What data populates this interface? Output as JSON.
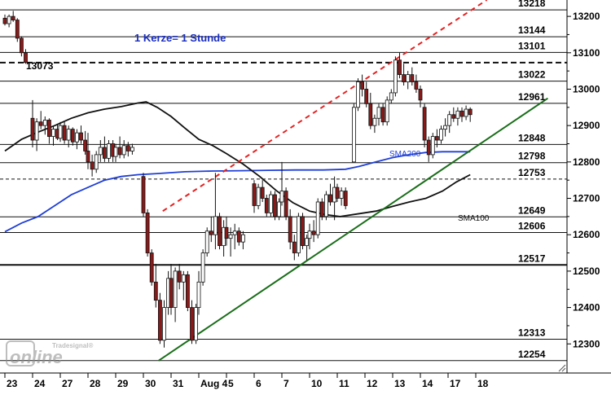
{
  "chart_data": {
    "type": "candlestick",
    "annotation": "1 Kerze= 1 Stunde",
    "start_label": "13073",
    "y_axis": {
      "min": 12220,
      "max": 13245,
      "ticks": [
        12300,
        12400,
        12500,
        12600,
        12700,
        12800,
        12900,
        13000,
        13100,
        13200
      ]
    },
    "x_axis": {
      "labels": [
        "23",
        "24",
        "27",
        "28",
        "29",
        "30",
        "31",
        "Aug 4",
        "5",
        "6",
        "7",
        "10",
        "11",
        "12",
        "13",
        "14",
        "17",
        "18"
      ]
    },
    "horizontal_levels": [
      {
        "value": 13218,
        "label": "13218",
        "style": "solid"
      },
      {
        "value": 13144,
        "label": "13144",
        "style": "solid"
      },
      {
        "value": 13101,
        "label": "13101",
        "style": "solid"
      },
      {
        "value": 13073,
        "label": "",
        "style": "dashed"
      },
      {
        "value": 13022,
        "label": "13022",
        "style": "solid"
      },
      {
        "value": 12961,
        "label": "12961",
        "style": "solid"
      },
      {
        "value": 12848,
        "label": "12848",
        "style": "solid"
      },
      {
        "value": 12798,
        "label": "12798",
        "style": "solid"
      },
      {
        "value": 12753,
        "label": "12753",
        "style": "dashed"
      },
      {
        "value": 12649,
        "label": "12649",
        "style": "solid"
      },
      {
        "value": 12606,
        "label": "12606",
        "style": "solid"
      },
      {
        "value": 12517,
        "label": "12517",
        "style": "solid_bold"
      },
      {
        "value": 12313,
        "label": "12313",
        "style": "solid"
      },
      {
        "value": 12254,
        "label": "12254",
        "style": "solid"
      }
    ],
    "series": [
      {
        "name": "SMA200",
        "color": "#1f3fd6",
        "points": [
          [
            0,
            12608
          ],
          [
            0.6,
            12632
          ],
          [
            1.2,
            12650
          ],
          [
            1.8,
            12680
          ],
          [
            2.4,
            12710
          ],
          [
            3.0,
            12730
          ],
          [
            3.6,
            12750
          ],
          [
            4.2,
            12760
          ],
          [
            4.8,
            12765
          ],
          [
            5.5,
            12768
          ],
          [
            6.5,
            12773
          ],
          [
            7.5,
            12775
          ],
          [
            8.5,
            12776
          ],
          [
            9.5,
            12777
          ],
          [
            10.5,
            12778
          ],
          [
            11.5,
            12778
          ],
          [
            12.3,
            12780
          ],
          [
            12.8,
            12788
          ],
          [
            13.4,
            12800
          ],
          [
            14.0,
            12812
          ],
          [
            14.6,
            12820
          ],
          [
            15.2,
            12826
          ],
          [
            15.8,
            12828
          ],
          [
            16.4,
            12828
          ],
          [
            16.8,
            12828
          ]
        ]
      },
      {
        "name": "SMA100",
        "color": "#111111",
        "points": [
          [
            0,
            12830
          ],
          [
            0.6,
            12862
          ],
          [
            1.2,
            12882
          ],
          [
            1.8,
            12900
          ],
          [
            2.4,
            12920
          ],
          [
            3.0,
            12935
          ],
          [
            3.6,
            12945
          ],
          [
            4.2,
            12952
          ],
          [
            4.8,
            12962
          ],
          [
            5.1,
            12965
          ],
          [
            5.5,
            12950
          ],
          [
            6.0,
            12925
          ],
          [
            6.5,
            12893
          ],
          [
            7.0,
            12862
          ],
          [
            7.5,
            12845
          ],
          [
            8.0,
            12823
          ],
          [
            8.6,
            12794
          ],
          [
            9.2,
            12760
          ],
          [
            9.8,
            12721
          ],
          [
            10.4,
            12688
          ],
          [
            11.0,
            12665
          ],
          [
            11.6,
            12655
          ],
          [
            12.1,
            12650
          ],
          [
            12.8,
            12658
          ],
          [
            13.4,
            12665
          ],
          [
            14.0,
            12678
          ],
          [
            14.6,
            12690
          ],
          [
            15.2,
            12700
          ],
          [
            15.8,
            12720
          ],
          [
            16.3,
            12745
          ],
          [
            16.8,
            12765
          ]
        ]
      }
    ],
    "trendlines": [
      {
        "name": "uptrend-support",
        "color": "#1a6e1a",
        "style": "solid",
        "from": [
          5.55,
          12254
        ],
        "to": [
          19.6,
          12975
        ]
      },
      {
        "name": "uptrend-resistance",
        "color": "#e52222",
        "style": "dashed",
        "from": [
          5.7,
          12665
        ],
        "to": [
          17.4,
          13245
        ]
      }
    ],
    "candles": [
      [
        0.0,
        13195,
        13205,
        13175,
        13180
      ],
      [
        0.15,
        13180,
        13205,
        13170,
        13200
      ],
      [
        0.3,
        13200,
        13215,
        13185,
        13190
      ],
      [
        0.45,
        13190,
        13195,
        13130,
        13140
      ],
      [
        0.6,
        13140,
        13145,
        13090,
        13100
      ],
      [
        0.75,
        13100,
        13110,
        13070,
        13073
      ],
      [
        1.0,
        12920,
        12970,
        12840,
        12860
      ],
      [
        1.15,
        12860,
        12920,
        12830,
        12910
      ],
      [
        1.3,
        12910,
        12940,
        12890,
        12900
      ],
      [
        1.45,
        12900,
        12925,
        12875,
        12915
      ],
      [
        1.6,
        12915,
        12920,
        12850,
        12870
      ],
      [
        1.75,
        12870,
        12900,
        12845,
        12890
      ],
      [
        1.9,
        12890,
        12905,
        12860,
        12865
      ],
      [
        2.0,
        12865,
        12910,
        12855,
        12900
      ],
      [
        2.15,
        12900,
        12910,
        12850,
        12860
      ],
      [
        2.3,
        12860,
        12900,
        12840,
        12890
      ],
      [
        2.45,
        12890,
        12895,
        12845,
        12855
      ],
      [
        2.6,
        12855,
        12890,
        12835,
        12880
      ],
      [
        2.75,
        12880,
        12900,
        12850,
        12860
      ],
      [
        2.9,
        12860,
        12885,
        12820,
        12830
      ],
      [
        3.0,
        12830,
        12880,
        12780,
        12800
      ],
      [
        3.15,
        12800,
        12820,
        12760,
        12780
      ],
      [
        3.3,
        12780,
        12830,
        12770,
        12820
      ],
      [
        3.45,
        12820,
        12860,
        12800,
        12840
      ],
      [
        3.6,
        12840,
        12870,
        12800,
        12810
      ],
      [
        3.75,
        12810,
        12860,
        12800,
        12850
      ],
      [
        3.9,
        12850,
        12860,
        12800,
        12815
      ],
      [
        4.0,
        12815,
        12850,
        12800,
        12840
      ],
      [
        4.15,
        12840,
        12870,
        12810,
        12820
      ],
      [
        4.3,
        12820,
        12860,
        12810,
        12845
      ],
      [
        4.45,
        12845,
        12855,
        12815,
        12830
      ],
      [
        4.6,
        12830,
        12850,
        12820,
        12840
      ],
      [
        5.0,
        12760,
        12770,
        12650,
        12660
      ],
      [
        5.15,
        12660,
        12670,
        12540,
        12550
      ],
      [
        5.3,
        12550,
        12560,
        12460,
        12470
      ],
      [
        5.45,
        12470,
        12520,
        12400,
        12420
      ],
      [
        5.6,
        12420,
        12440,
        12300,
        12310
      ],
      [
        5.75,
        12310,
        12420,
        12290,
        12400
      ],
      [
        5.9,
        12400,
        12500,
        12380,
        12480
      ],
      [
        6.0,
        12480,
        12520,
        12380,
        12400
      ],
      [
        6.15,
        12400,
        12510,
        12360,
        12500
      ],
      [
        6.3,
        12500,
        12520,
        12450,
        12470
      ],
      [
        6.45,
        12470,
        12500,
        12420,
        12490
      ],
      [
        6.6,
        12490,
        12500,
        12390,
        12400
      ],
      [
        6.75,
        12400,
        12420,
        12300,
        12310
      ],
      [
        6.9,
        12310,
        12410,
        12300,
        12400
      ],
      [
        7.0,
        12400,
        12500,
        12380,
        12470
      ],
      [
        7.15,
        12470,
        12560,
        12460,
        12550
      ],
      [
        7.3,
        12550,
        12620,
        12540,
        12610
      ],
      [
        7.45,
        12610,
        12650,
        12580,
        12600
      ],
      [
        7.6,
        12600,
        12770,
        12560,
        12650
      ],
      [
        7.75,
        12650,
        12660,
        12560,
        12570
      ],
      [
        7.9,
        12570,
        12640,
        12540,
        12620
      ],
      [
        8.0,
        12620,
        12650,
        12570,
        12590
      ],
      [
        8.15,
        12590,
        12620,
        12540,
        12600
      ],
      [
        8.3,
        12600,
        12630,
        12560,
        12610
      ],
      [
        8.45,
        12610,
        12620,
        12570,
        12580
      ],
      [
        8.6,
        12580,
        12610,
        12560,
        12600
      ],
      [
        9.0,
        12740,
        12750,
        12660,
        12680
      ],
      [
        9.15,
        12680,
        12740,
        12670,
        12730
      ],
      [
        9.3,
        12730,
        12750,
        12690,
        12700
      ],
      [
        9.45,
        12700,
        12710,
        12650,
        12660
      ],
      [
        9.6,
        12660,
        12720,
        12650,
        12710
      ],
      [
        9.75,
        12710,
        12720,
        12640,
        12650
      ],
      [
        9.9,
        12650,
        12700,
        12640,
        12690
      ],
      [
        10.0,
        12690,
        12800,
        12680,
        12720
      ],
      [
        10.15,
        12720,
        12730,
        12640,
        12650
      ],
      [
        10.3,
        12650,
        12670,
        12560,
        12580
      ],
      [
        10.45,
        12580,
        12600,
        12530,
        12550
      ],
      [
        10.6,
        12550,
        12660,
        12540,
        12650
      ],
      [
        10.75,
        12650,
        12660,
        12560,
        12570
      ],
      [
        10.9,
        12570,
        12600,
        12530,
        12590
      ],
      [
        11.0,
        12590,
        12630,
        12560,
        12610
      ],
      [
        11.15,
        12610,
        12640,
        12580,
        12600
      ],
      [
        11.3,
        12600,
        12700,
        12590,
        12690
      ],
      [
        11.45,
        12690,
        12700,
        12640,
        12650
      ],
      [
        11.6,
        12650,
        12720,
        12640,
        12710
      ],
      [
        11.75,
        12710,
        12740,
        12680,
        12690
      ],
      [
        11.9,
        12690,
        12760,
        12640,
        12730
      ],
      [
        12.0,
        12730,
        12740,
        12690,
        12700
      ],
      [
        12.15,
        12700,
        12730,
        12680,
        12720
      ],
      [
        12.3,
        12720,
        12730,
        12670,
        12680
      ],
      [
        12.6,
        12800,
        12960,
        12800,
        12950
      ],
      [
        12.75,
        12950,
        13030,
        12940,
        13020
      ],
      [
        12.9,
        13020,
        13040,
        12980,
        13000
      ],
      [
        13.05,
        13000,
        13020,
        12950,
        12960
      ],
      [
        13.2,
        12960,
        12990,
        12890,
        12900
      ],
      [
        13.35,
        12900,
        12930,
        12880,
        12920
      ],
      [
        13.5,
        12920,
        12960,
        12900,
        12950
      ],
      [
        13.65,
        12950,
        12960,
        12900,
        12910
      ],
      [
        13.8,
        12910,
        12980,
        12900,
        12970
      ],
      [
        13.95,
        12970,
        13000,
        12960,
        12990
      ],
      [
        14.1,
        12990,
        13090,
        12980,
        13080
      ],
      [
        14.25,
        13080,
        13100,
        13030,
        13040
      ],
      [
        14.4,
        13040,
        13070,
        13010,
        13020
      ],
      [
        14.55,
        13020,
        13050,
        13000,
        13040
      ],
      [
        14.7,
        13040,
        13060,
        13010,
        13020
      ],
      [
        14.85,
        13020,
        13040,
        12990,
        13000
      ],
      [
        15.0,
        13000,
        13010,
        12950,
        12970
      ],
      [
        15.15,
        12950,
        12960,
        12840,
        12860
      ],
      [
        15.3,
        12860,
        12870,
        12800,
        12820
      ],
      [
        15.45,
        12820,
        12880,
        12810,
        12870
      ],
      [
        15.6,
        12870,
        12890,
        12840,
        12860
      ],
      [
        15.75,
        12860,
        12900,
        12850,
        12890
      ],
      [
        15.9,
        12890,
        12920,
        12870,
        12900
      ],
      [
        16.05,
        12900,
        12940,
        12880,
        12930
      ],
      [
        16.2,
        12930,
        12950,
        12910,
        12920
      ],
      [
        16.35,
        12920,
        12950,
        12900,
        12940
      ],
      [
        16.5,
        12940,
        12950,
        12910,
        12925
      ],
      [
        16.65,
        12925,
        12955,
        12915,
        12945
      ],
      [
        16.8,
        12945,
        12950,
        12910,
        12930
      ]
    ],
    "colors": {
      "up": "#ffffff",
      "down": "#8a1a1a",
      "wick": "#111111"
    }
  },
  "watermark": {
    "brand": "online",
    "sub": "Tradesignal®"
  }
}
